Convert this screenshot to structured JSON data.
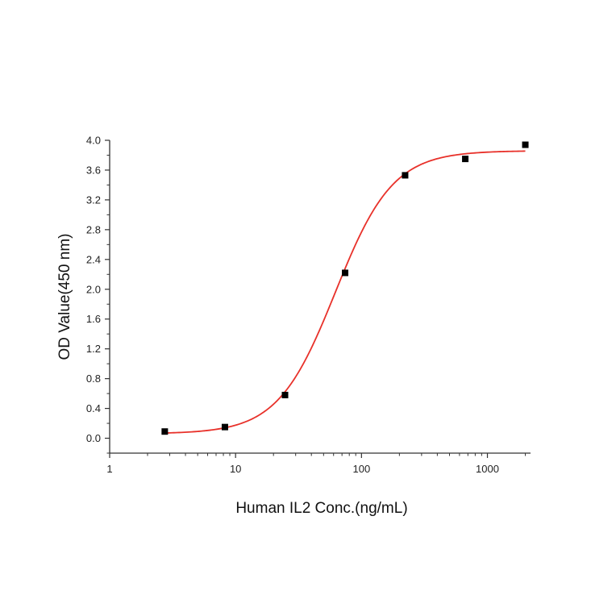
{
  "chart_data": {
    "type": "scatter",
    "title": "",
    "xlabel": "Human IL2 Conc.(ng/mL)",
    "ylabel": "OD Value(450 nm)",
    "x_scale": "log",
    "xlim": [
      1,
      2200
    ],
    "ylim": [
      -0.2,
      4.0
    ],
    "x_ticks": [
      1,
      10,
      100,
      1000
    ],
    "x_tick_labels": [
      "1",
      "10",
      "100",
      "1000"
    ],
    "y_ticks": [
      0.0,
      0.4,
      0.8,
      1.2,
      1.6,
      2.0,
      2.4,
      2.8,
      3.2,
      3.6,
      4.0
    ],
    "y_tick_labels": [
      "0.0",
      "0.4",
      "0.8",
      "1.2",
      "1.6",
      "2.0",
      "2.4",
      "2.8",
      "3.2",
      "3.6",
      "4.0"
    ],
    "grid": false,
    "series": [
      {
        "kind": "points",
        "marker": "square",
        "color": "#000000",
        "x": [
          2.74,
          8.23,
          24.7,
          74.1,
          222,
          667,
          2000
        ],
        "y": [
          0.09,
          0.15,
          0.58,
          2.22,
          3.53,
          3.75,
          3.94
        ]
      },
      {
        "kind": "fit-curve",
        "color": "#e8312a",
        "fit": {
          "bottom": 0.06,
          "top": 3.86,
          "ec50": 62,
          "hill": 1.9
        },
        "x_range": [
          2.74,
          2000
        ]
      }
    ]
  }
}
